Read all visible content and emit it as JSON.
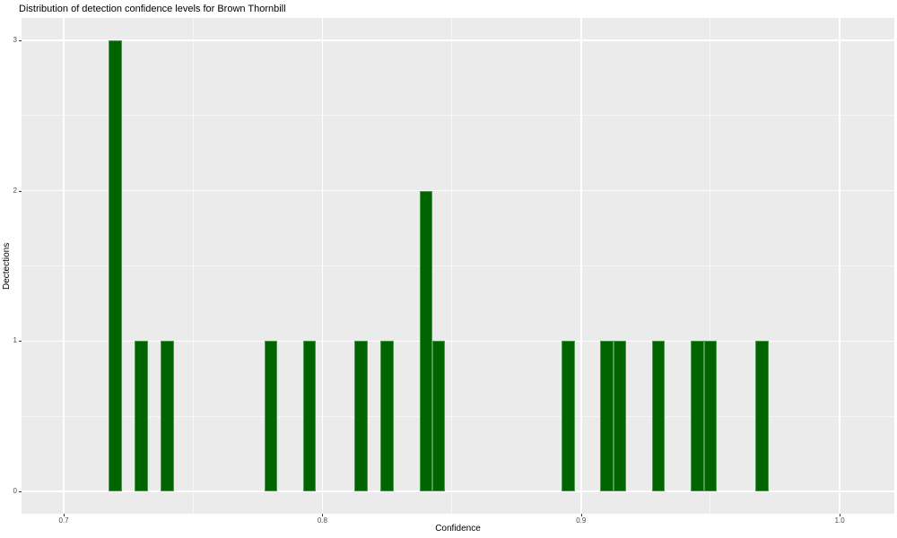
{
  "chart_data": {
    "type": "bar",
    "subtype": "histogram",
    "title": "Distribution of detection confidence levels for Brown Thornbill",
    "xlabel": "Confidence",
    "ylabel": "Dectections",
    "bin_width": 0.005,
    "bins": [
      {
        "x": 0.72,
        "count": 3
      },
      {
        "x": 0.73,
        "count": 1
      },
      {
        "x": 0.74,
        "count": 1
      },
      {
        "x": 0.78,
        "count": 1
      },
      {
        "x": 0.795,
        "count": 1
      },
      {
        "x": 0.815,
        "count": 1
      },
      {
        "x": 0.825,
        "count": 1
      },
      {
        "x": 0.84,
        "count": 2
      },
      {
        "x": 0.845,
        "count": 1
      },
      {
        "x": 0.895,
        "count": 1
      },
      {
        "x": 0.91,
        "count": 1
      },
      {
        "x": 0.915,
        "count": 1
      },
      {
        "x": 0.93,
        "count": 1
      },
      {
        "x": 0.945,
        "count": 1
      },
      {
        "x": 0.95,
        "count": 1
      },
      {
        "x": 0.97,
        "count": 1
      }
    ],
    "x_tick_values": [
      0.7,
      0.8,
      0.9,
      1.0
    ],
    "x_tick_labels": [
      "0.7",
      "0.8",
      "0.9",
      "1.0"
    ],
    "x_minor_values": [
      0.75,
      0.85,
      0.95
    ],
    "y_tick_values": [
      0,
      1,
      2,
      3
    ],
    "y_tick_labels": [
      "0",
      "1",
      "2",
      "3"
    ],
    "y_minor_values": [
      0.5,
      1.5,
      2.5
    ],
    "xlim": [
      0.6837,
      1.0211
    ],
    "ylim": [
      -0.15,
      3.15
    ],
    "grid": true,
    "legend": "none",
    "colors": {
      "bar_fill": "#006400",
      "bar_edge": "#4e9a4e",
      "panel_bg": "#EBEBEB",
      "grid_major": "#FFFFFF",
      "grid_minor": "rgba(255,255,255,0.55)",
      "tick_text": "#4D4D4D",
      "tick_mark": "#333333",
      "title_text": "#000000"
    }
  }
}
